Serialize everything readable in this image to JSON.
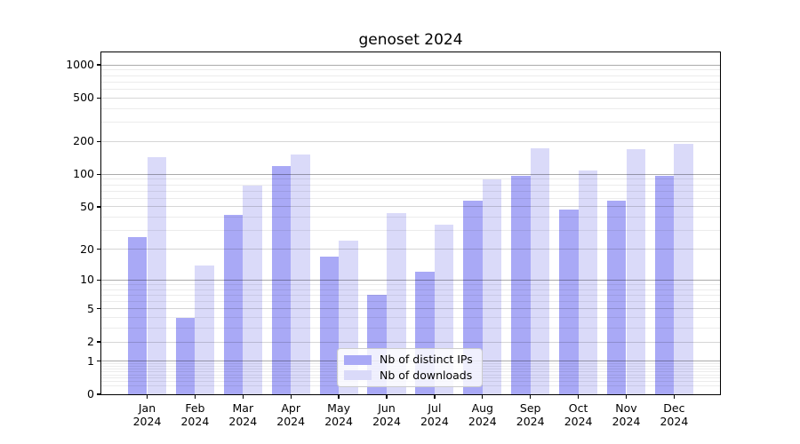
{
  "chart_data": {
    "type": "bar",
    "title": "genoset 2024",
    "categories": [
      "Jan",
      "Feb",
      "Mar",
      "Apr",
      "May",
      "Jun",
      "Jul",
      "Aug",
      "Sep",
      "Oct",
      "Nov",
      "Dec"
    ],
    "category_year": "2024",
    "series": [
      {
        "name": "Nb of distinct IPs",
        "color": "#a9a9f6",
        "values": [
          26,
          4,
          42,
          120,
          17,
          7,
          12,
          57,
          97,
          47,
          57,
          97
        ]
      },
      {
        "name": "Nb of downloads",
        "color": "#dadaf9",
        "values": [
          143,
          14,
          79,
          151,
          24,
          44,
          34,
          89,
          174,
          108,
          171,
          190
        ]
      }
    ],
    "xlabel": "",
    "ylabel": "",
    "yscale": "log1p",
    "ylim": [
      0,
      1300
    ],
    "yticks": [
      0,
      1,
      2,
      5,
      10,
      20,
      50,
      100,
      200,
      500,
      1000
    ],
    "ytick_labels": [
      "0",
      "1",
      "2",
      "5",
      "10",
      "20",
      "50",
      "100",
      "200",
      "500",
      "1000"
    ],
    "major_yticks": [
      1,
      10,
      100,
      1000
    ],
    "grid": "both",
    "legend": {
      "position": "lower center",
      "labels": [
        "Nb of distinct IPs",
        "Nb of downloads"
      ]
    }
  }
}
